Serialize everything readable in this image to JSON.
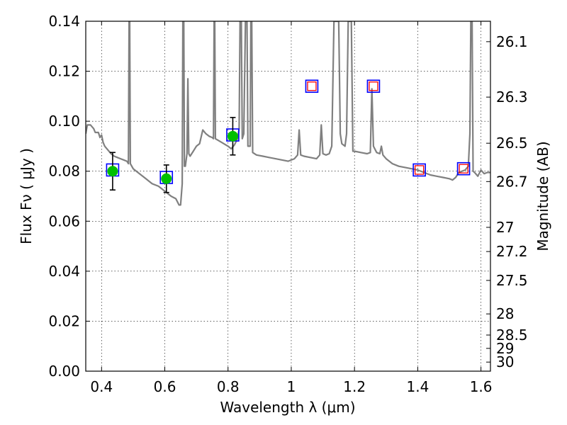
{
  "chart_data": {
    "type": "line",
    "title": "",
    "xlabel": "Wavelength  λ (μm)",
    "ylabel": "Flux  Fν  ( μJy )",
    "y2label": "Magnitude (AB)",
    "xlim": [
      0.35,
      1.63
    ],
    "ylim": [
      0.0,
      0.14
    ],
    "grid": true,
    "x_ticks": [
      0.4,
      0.6,
      0.8,
      1.0,
      1.2,
      1.4,
      1.6
    ],
    "x_tick_labels": [
      "0.4",
      "0.6",
      "0.8",
      "1",
      "1.2",
      "1.4",
      "1.6"
    ],
    "y_ticks": [
      0.0,
      0.02,
      0.04,
      0.06,
      0.08,
      0.1,
      0.12,
      0.14
    ],
    "y_tick_labels": [
      "0.00",
      "0.02",
      "0.04",
      "0.06",
      "0.08",
      "0.10",
      "0.12",
      "0.14"
    ],
    "y2_ticks": [
      {
        "mag": 26.1,
        "label": "26.1"
      },
      {
        "mag": 26.3,
        "label": "26.3"
      },
      {
        "mag": 26.5,
        "label": "26.5"
      },
      {
        "mag": 26.7,
        "label": "26.7"
      },
      {
        "mag": 27.0,
        "label": "27"
      },
      {
        "mag": 27.2,
        "label": "27.2"
      },
      {
        "mag": 27.5,
        "label": "27.5"
      },
      {
        "mag": 28.0,
        "label": "28"
      },
      {
        "mag": 28.5,
        "label": "28.5"
      },
      {
        "mag": 29.0,
        "label": "29"
      },
      {
        "mag": 30.0,
        "label": "30"
      }
    ],
    "series": [
      {
        "kind": "model-spectrum",
        "color": "#808080",
        "points": [
          [
            0.35,
            0.095
          ],
          [
            0.355,
            0.0985
          ],
          [
            0.365,
            0.0985
          ],
          [
            0.375,
            0.097
          ],
          [
            0.38,
            0.0955
          ],
          [
            0.39,
            0.0955
          ],
          [
            0.395,
            0.0935
          ],
          [
            0.4,
            0.0945
          ],
          [
            0.405,
            0.0915
          ],
          [
            0.41,
            0.09
          ],
          [
            0.42,
            0.0885
          ],
          [
            0.43,
            0.087
          ],
          [
            0.44,
            0.086
          ],
          [
            0.45,
            0.0855
          ],
          [
            0.46,
            0.085
          ],
          [
            0.47,
            0.0845
          ],
          [
            0.48,
            0.084
          ],
          [
            0.485,
            0.083
          ],
          [
            0.487,
            0.14
          ],
          [
            0.489,
            0.14
          ],
          [
            0.491,
            0.083
          ],
          [
            0.5,
            0.081
          ],
          [
            0.52,
            0.079
          ],
          [
            0.54,
            0.077
          ],
          [
            0.56,
            0.075
          ],
          [
            0.58,
            0.074
          ],
          [
            0.6,
            0.072
          ],
          [
            0.62,
            0.07
          ],
          [
            0.635,
            0.069
          ],
          [
            0.645,
            0.0665
          ],
          [
            0.65,
            0.0665
          ],
          [
            0.655,
            0.075
          ],
          [
            0.657,
            0.14
          ],
          [
            0.66,
            0.14
          ],
          [
            0.662,
            0.082
          ],
          [
            0.665,
            0.082
          ],
          [
            0.67,
            0.087
          ],
          [
            0.673,
            0.117
          ],
          [
            0.676,
            0.087
          ],
          [
            0.68,
            0.086
          ],
          [
            0.69,
            0.088
          ],
          [
            0.7,
            0.09
          ],
          [
            0.71,
            0.091
          ],
          [
            0.72,
            0.0965
          ],
          [
            0.73,
            0.095
          ],
          [
            0.74,
            0.094
          ],
          [
            0.75,
            0.0935
          ],
          [
            0.754,
            0.093
          ],
          [
            0.756,
            0.14
          ],
          [
            0.758,
            0.14
          ],
          [
            0.76,
            0.093
          ],
          [
            0.78,
            0.0915
          ],
          [
            0.8,
            0.09
          ],
          [
            0.81,
            0.089
          ],
          [
            0.82,
            0.0905
          ],
          [
            0.83,
            0.093
          ],
          [
            0.835,
            0.097
          ],
          [
            0.838,
            0.14
          ],
          [
            0.842,
            0.14
          ],
          [
            0.845,
            0.093
          ],
          [
            0.85,
            0.095
          ],
          [
            0.855,
            0.14
          ],
          [
            0.86,
            0.14
          ],
          [
            0.863,
            0.09
          ],
          [
            0.87,
            0.09
          ],
          [
            0.872,
            0.14
          ],
          [
            0.875,
            0.14
          ],
          [
            0.878,
            0.0875
          ],
          [
            0.89,
            0.0865
          ],
          [
            0.91,
            0.086
          ],
          [
            0.93,
            0.0855
          ],
          [
            0.95,
            0.085
          ],
          [
            0.97,
            0.0845
          ],
          [
            0.99,
            0.084
          ],
          [
            1.01,
            0.085
          ],
          [
            1.02,
            0.0865
          ],
          [
            1.025,
            0.0965
          ],
          [
            1.03,
            0.0865
          ],
          [
            1.04,
            0.086
          ],
          [
            1.06,
            0.0855
          ],
          [
            1.08,
            0.085
          ],
          [
            1.09,
            0.0865
          ],
          [
            1.095,
            0.0985
          ],
          [
            1.1,
            0.087
          ],
          [
            1.11,
            0.0865
          ],
          [
            1.12,
            0.087
          ],
          [
            1.128,
            0.09
          ],
          [
            1.135,
            0.14
          ],
          [
            1.15,
            0.14
          ],
          [
            1.155,
            0.095
          ],
          [
            1.16,
            0.091
          ],
          [
            1.17,
            0.09
          ],
          [
            1.175,
            0.095
          ],
          [
            1.18,
            0.14
          ],
          [
            1.19,
            0.14
          ],
          [
            1.195,
            0.088
          ],
          [
            1.2,
            0.088
          ],
          [
            1.22,
            0.0875
          ],
          [
            1.24,
            0.087
          ],
          [
            1.25,
            0.0875
          ],
          [
            1.255,
            0.113
          ],
          [
            1.26,
            0.09
          ],
          [
            1.27,
            0.0875
          ],
          [
            1.28,
            0.087
          ],
          [
            1.285,
            0.09
          ],
          [
            1.29,
            0.0865
          ],
          [
            1.3,
            0.085
          ],
          [
            1.32,
            0.083
          ],
          [
            1.34,
            0.082
          ],
          [
            1.36,
            0.0815
          ],
          [
            1.38,
            0.081
          ],
          [
            1.4,
            0.0805
          ],
          [
            1.42,
            0.0795
          ],
          [
            1.44,
            0.0785
          ],
          [
            1.46,
            0.078
          ],
          [
            1.48,
            0.0775
          ],
          [
            1.5,
            0.077
          ],
          [
            1.51,
            0.0765
          ],
          [
            1.52,
            0.0775
          ],
          [
            1.53,
            0.0795
          ],
          [
            1.54,
            0.08
          ],
          [
            1.55,
            0.0805
          ],
          [
            1.56,
            0.082
          ],
          [
            1.565,
            0.095
          ],
          [
            1.568,
            0.14
          ],
          [
            1.572,
            0.14
          ],
          [
            1.575,
            0.08
          ],
          [
            1.58,
            0.0795
          ],
          [
            1.59,
            0.078
          ],
          [
            1.6,
            0.0805
          ],
          [
            1.61,
            0.079
          ],
          [
            1.62,
            0.0795
          ],
          [
            1.63,
            0.0795
          ]
        ]
      },
      {
        "kind": "model-photometry",
        "marker": "square",
        "color": "#0000ff",
        "points": [
          [
            0.435,
            0.0805
          ],
          [
            0.605,
            0.0775
          ],
          [
            0.815,
            0.0945
          ],
          [
            1.065,
            0.114
          ],
          [
            1.26,
            0.114
          ],
          [
            1.405,
            0.0805
          ],
          [
            1.545,
            0.081
          ]
        ]
      },
      {
        "kind": "observed-detections",
        "marker": "circle",
        "color": "#00c000",
        "points": [
          {
            "x": 0.435,
            "y": 0.08,
            "yerr": [
              0.0075,
              0.0075
            ]
          },
          {
            "x": 0.605,
            "y": 0.077,
            "yerr": [
              0.0055,
              0.0055
            ]
          },
          {
            "x": 0.815,
            "y": 0.094,
            "yerr": [
              0.0075,
              0.0075
            ]
          }
        ]
      },
      {
        "kind": "observed-nondetections",
        "marker": "square",
        "color": "#ff0000",
        "points": [
          [
            1.065,
            0.114
          ],
          [
            1.26,
            0.114
          ],
          [
            1.405,
            0.0805
          ],
          [
            1.545,
            0.081
          ]
        ]
      }
    ]
  }
}
